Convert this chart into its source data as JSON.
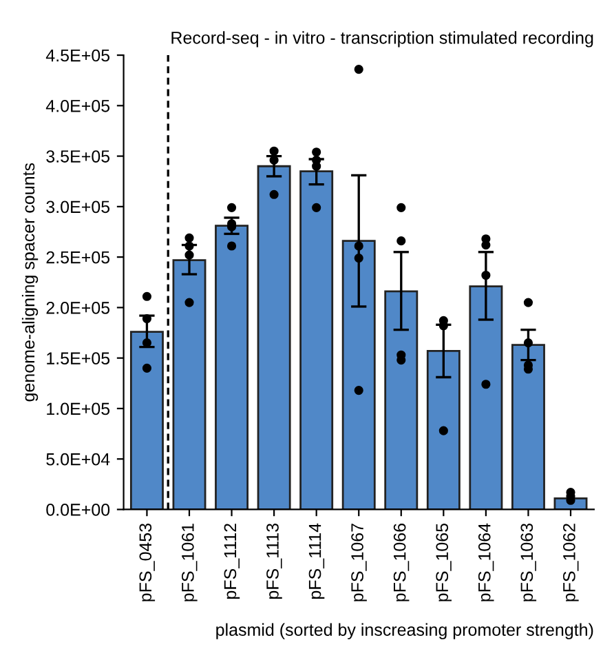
{
  "chart_data": {
    "type": "bar",
    "title": "Record-seq - in vitro - transcription stimulated recording",
    "xlabel": "plasmid (sorted by inscreasing promoter strength)",
    "ylabel": "genome-aligning spacer counts",
    "categories": [
      "pFS_0453",
      "pFS_1061",
      "pFS_1112",
      "pFS_1113",
      "pFS_1114",
      "pFS_1067",
      "pFS_1066",
      "pFS_1065",
      "pFS_1064",
      "pFS_1063",
      "pFS_1062"
    ],
    "series": [
      {
        "color": "#5088c8",
        "values": [
          176000,
          247000,
          281000,
          340000,
          335000,
          266000,
          216000,
          157000,
          221000,
          163000,
          11000
        ],
        "errors": [
          [
            161000,
            192000
          ],
          [
            233000,
            262000
          ],
          [
            273000,
            289000
          ],
          [
            330000,
            350000
          ],
          [
            322000,
            347000
          ],
          [
            201000,
            331000
          ],
          [
            178000,
            255000
          ],
          [
            131000,
            183000
          ],
          [
            188000,
            255000
          ],
          [
            148000,
            178000
          ],
          null
        ]
      },
      {
        "type": "scatter",
        "color": "#000000",
        "x": [
          "pFS_0453",
          "pFS_0453",
          "pFS_0453",
          "pFS_0453",
          "pFS_1061",
          "pFS_1061",
          "pFS_1061",
          "pFS_1061",
          "pFS_1112",
          "pFS_1112",
          "pFS_1112",
          "pFS_1112",
          "pFS_1113",
          "pFS_1113",
          "pFS_1113",
          "pFS_1114",
          "pFS_1114",
          "pFS_1114",
          "pFS_1114",
          "pFS_1067",
          "pFS_1067",
          "pFS_1067",
          "pFS_1067",
          "pFS_1066",
          "pFS_1066",
          "pFS_1066",
          "pFS_1066",
          "pFS_1065",
          "pFS_1065",
          "pFS_1065",
          "pFS_1064",
          "pFS_1064",
          "pFS_1064",
          "pFS_1064",
          "pFS_1063",
          "pFS_1063",
          "pFS_1063",
          "pFS_1063",
          "pFS_1062",
          "pFS_1062",
          "pFS_1062"
        ],
        "values": [
          211000,
          189000,
          165000,
          140000,
          269000,
          261000,
          252000,
          205000,
          299000,
          283000,
          280000,
          261000,
          355000,
          346000,
          312000,
          354000,
          346000,
          340000,
          299000,
          436000,
          261000,
          249000,
          118000,
          299000,
          266000,
          153000,
          148000,
          187000,
          182000,
          78000,
          268000,
          262000,
          232000,
          124000,
          205000,
          165000,
          143000,
          139000,
          17000,
          13000,
          9000
        ]
      }
    ],
    "ylim": [
      0,
      450000
    ],
    "yticks": [
      {
        "value": 0,
        "label": "0.0E+00"
      },
      {
        "value": 50000,
        "label": "5.0E+04"
      },
      {
        "value": 100000,
        "label": "1.0E+05"
      },
      {
        "value": 150000,
        "label": "1.5E+05"
      },
      {
        "value": 200000,
        "label": "2.0E+05"
      },
      {
        "value": 250000,
        "label": "2.5E+05"
      },
      {
        "value": 300000,
        "label": "3.0E+05"
      },
      {
        "value": 350000,
        "label": "3.5E+05"
      },
      {
        "value": 400000,
        "label": "4.0E+05"
      },
      {
        "value": 450000,
        "label": "4.5E+05"
      }
    ],
    "grid": false,
    "legend": false,
    "marker": "circle"
  }
}
